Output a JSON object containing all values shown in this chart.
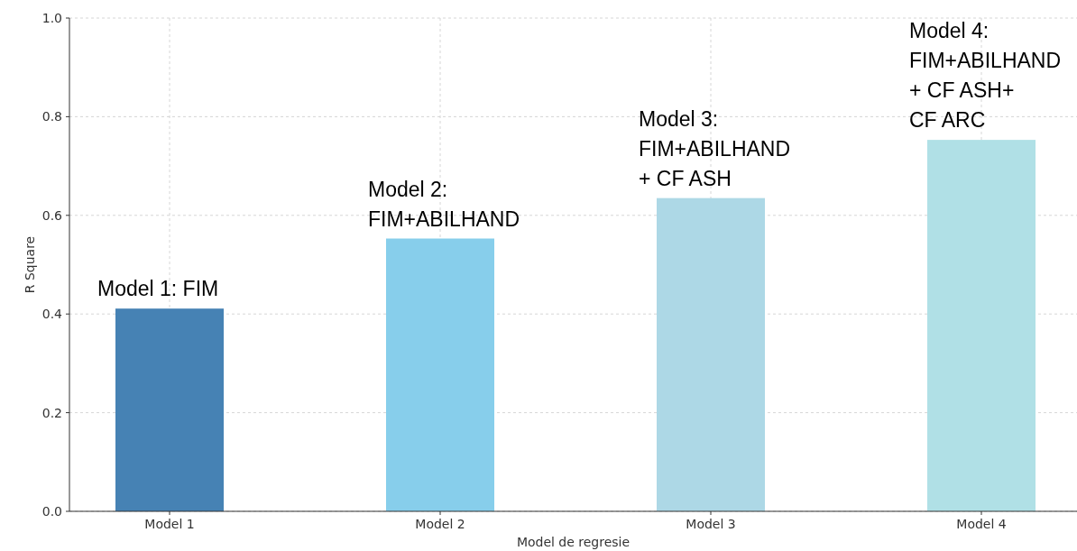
{
  "chart_data": {
    "type": "bar",
    "xlabel": "Model de regresie",
    "ylabel": "R Square",
    "categories": [
      "Model 1",
      "Model 2",
      "Model 3",
      "Model 4"
    ],
    "values": [
      0.411,
      0.553,
      0.635,
      0.753
    ],
    "colors": [
      "#4682b4",
      "#87ceeb",
      "#add8e6",
      "#b0e0e6"
    ],
    "ylim": [
      0,
      1
    ],
    "yticks": [
      {
        "value": 0,
        "label": "0.0"
      },
      {
        "value": 0.2,
        "label": "0.2"
      },
      {
        "value": 0.4,
        "label": "0.4"
      },
      {
        "value": 0.6,
        "label": "0.6"
      },
      {
        "value": 0.8,
        "label": "0.8"
      },
      {
        "value": 1,
        "label": "1.0"
      }
    ],
    "grid": true,
    "annotations": [
      {
        "text": "Model 1: FIM",
        "x": "Model 1",
        "y": 0.411
      },
      {
        "text": "Model 2:\nFIM+ABILHAND",
        "x": "Model 2",
        "y": 0.553
      },
      {
        "text": "Model 3:\nFIM+ABILHAND\n+ CF ASH",
        "x": "Model 3",
        "y": 0.635
      },
      {
        "text": "Model 4:\nFIM+ABILHAND\n+ CF ASH+\nCF ARC",
        "x": "Model 4",
        "y": 0.753
      }
    ]
  }
}
